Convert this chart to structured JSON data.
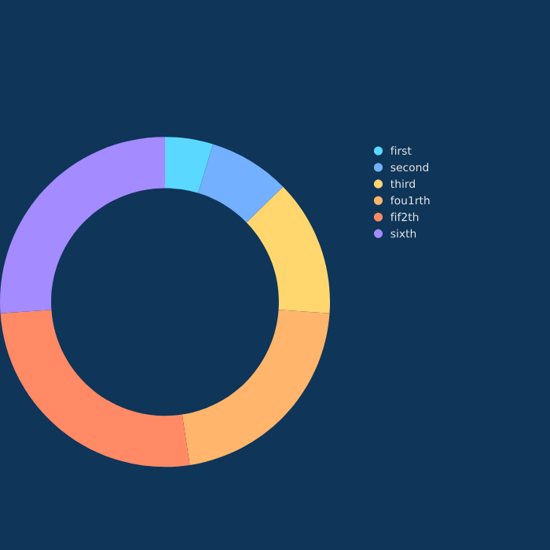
{
  "chart_data": {
    "type": "donut",
    "categories": [
      "first",
      "second",
      "third",
      "fou1rth",
      "fif2th",
      "sixth"
    ],
    "values": [
      4.7,
      8.0,
      13.4,
      21.5,
      26.3,
      26.1
    ],
    "colors": [
      "#5ad8ff",
      "#73b0ff",
      "#ffd76e",
      "#ffb56b",
      "#ff8a65",
      "#a48bff"
    ],
    "legend": "right"
  }
}
